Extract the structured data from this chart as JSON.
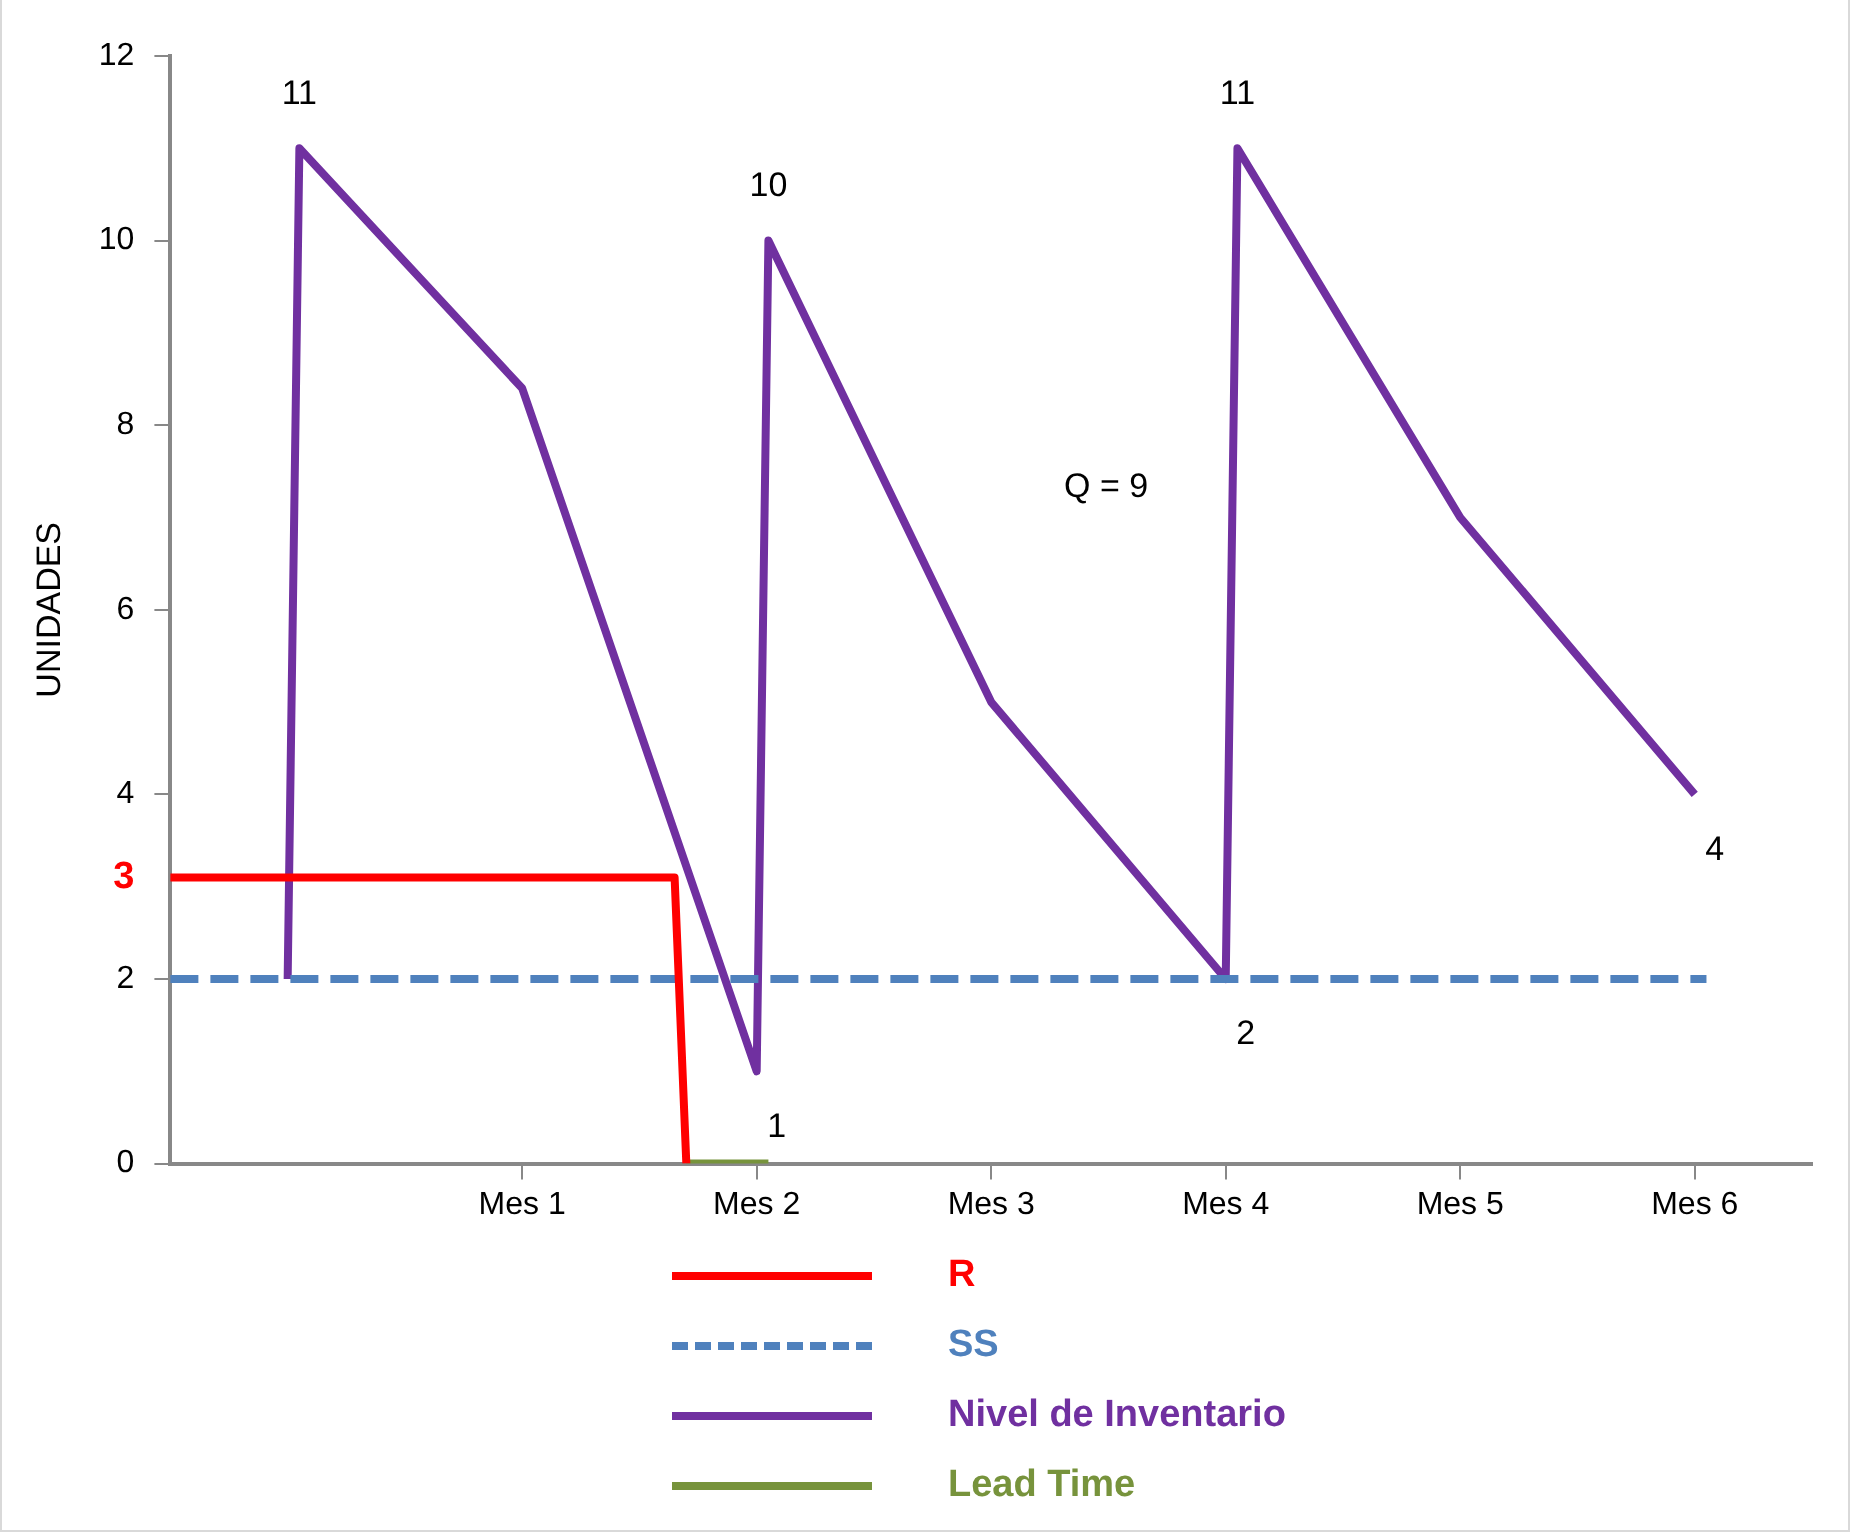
{
  "chart_data": {
    "type": "line",
    "ylabel": "UNIDADES",
    "ylim": [
      0,
      12
    ],
    "yticks": [
      0,
      2,
      4,
      6,
      8,
      10,
      12
    ],
    "categories": [
      null,
      null,
      null,
      null,
      null,
      null,
      null,
      null,
      null,
      null,
      null,
      null,
      null,
      null,
      null,
      null,
      null,
      null,
      null,
      null,
      null,
      null,
      null,
      null,
      null,
      null,
      null,
      null,
      null,
      null,
      "Mes 1",
      null,
      null,
      null,
      null,
      null,
      null,
      null,
      null,
      null,
      null,
      null,
      null,
      null,
      null,
      null,
      null,
      null,
      null,
      null,
      "Mes 2",
      null,
      null,
      null,
      null,
      null,
      null,
      null,
      null,
      null,
      null,
      null,
      null,
      null,
      null,
      null,
      null,
      null,
      null,
      null,
      "Mes 3",
      null,
      null,
      null,
      null,
      null,
      null,
      null,
      null,
      null,
      null,
      null,
      null,
      null,
      null,
      null,
      null,
      null,
      null,
      null,
      "Mes 4",
      null,
      null,
      null,
      null,
      null,
      null,
      null,
      null,
      null,
      null,
      null,
      null,
      null,
      null,
      null,
      null,
      null,
      null,
      null,
      "Mes 5",
      null,
      null,
      null,
      null,
      null,
      null,
      null,
      null,
      null,
      null,
      null,
      null,
      null,
      null,
      null,
      null,
      null,
      null,
      null,
      "Mes 6",
      null,
      null,
      null,
      null,
      null,
      null,
      null,
      null,
      null,
      null
    ],
    "grid": false,
    "legend": "bottom",
    "marker": "none",
    "series": [
      {
        "name": "R",
        "color": "#ff0000",
        "line_style": "solid",
        "values": [
          3.1,
          null,
          null,
          null,
          null,
          null,
          null,
          null,
          null,
          null,
          null,
          null,
          null,
          null,
          null,
          null,
          null,
          null,
          null,
          null,
          null,
          null,
          null,
          null,
          null,
          null,
          null,
          null,
          null,
          null,
          null,
          null,
          null,
          null,
          null,
          null,
          null,
          null,
          null,
          null,
          null,
          null,
          null,
          3.1,
          0,
          null,
          null,
          null,
          null,
          null,
          null,
          null,
          null,
          null,
          null,
          null,
          null,
          null,
          null,
          null,
          null,
          null,
          null,
          null,
          null,
          null,
          null,
          null,
          null,
          null,
          null,
          null,
          null,
          null,
          null,
          null,
          null,
          null,
          null,
          null,
          null,
          null,
          null,
          null,
          null,
          null,
          null,
          null,
          null,
          null,
          null,
          null,
          null,
          null,
          null,
          null,
          null,
          null,
          null,
          null,
          null,
          null,
          null,
          null,
          null,
          null,
          null,
          null,
          null,
          null,
          null,
          null,
          null,
          null,
          null,
          null,
          null,
          null,
          null,
          null,
          null,
          null,
          null,
          null,
          null,
          null,
          null,
          null,
          null,
          null,
          null,
          null,
          null,
          null,
          null,
          null,
          null,
          null,
          null,
          null,
          null
        ],
        "value_labels": [
          "3",
          null,
          null,
          null,
          null,
          null,
          null,
          null,
          null,
          null,
          null,
          null,
          null,
          null,
          null,
          null,
          null,
          null,
          null,
          null,
          null,
          null,
          null,
          null,
          null,
          null,
          null,
          null,
          null,
          null,
          null,
          null,
          null,
          null,
          null,
          null,
          null,
          null,
          null,
          null,
          null,
          null,
          null,
          null,
          null,
          null,
          null,
          null,
          null,
          null,
          null,
          null,
          null,
          null,
          null,
          null,
          null,
          null,
          null,
          null,
          null,
          null,
          null,
          null,
          null,
          null,
          null,
          null,
          null,
          null,
          null,
          null,
          null,
          null,
          null,
          null,
          null,
          null,
          null,
          null,
          null,
          null,
          null,
          null,
          null,
          null,
          null,
          null,
          null,
          null,
          null,
          null,
          null,
          null,
          null,
          null,
          null,
          null,
          null,
          null,
          null,
          null,
          null,
          null,
          null,
          null,
          null,
          null,
          null,
          null,
          null,
          null,
          null,
          null,
          null,
          null,
          null,
          null,
          null,
          null,
          null,
          null,
          null,
          null,
          null,
          null,
          null,
          null,
          null,
          null,
          null,
          null,
          null,
          null,
          null,
          null,
          null,
          null,
          null,
          null,
          null
        ]
      },
      {
        "name": "SS",
        "color": "#4f81bd",
        "line_style": "dashed",
        "values": [
          2,
          null,
          null,
          null,
          null,
          null,
          null,
          null,
          null,
          null,
          null,
          null,
          null,
          null,
          null,
          null,
          null,
          null,
          null,
          null,
          null,
          null,
          null,
          null,
          null,
          null,
          null,
          null,
          null,
          null,
          null,
          null,
          null,
          null,
          null,
          null,
          null,
          null,
          null,
          null,
          null,
          null,
          null,
          null,
          null,
          null,
          null,
          null,
          null,
          null,
          null,
          null,
          null,
          null,
          null,
          null,
          null,
          null,
          null,
          null,
          null,
          null,
          null,
          null,
          null,
          null,
          null,
          null,
          null,
          null,
          null,
          null,
          null,
          null,
          null,
          null,
          null,
          null,
          null,
          null,
          null,
          null,
          null,
          null,
          null,
          null,
          null,
          null,
          null,
          null,
          null,
          null,
          null,
          null,
          null,
          null,
          null,
          null,
          null,
          null,
          null,
          null,
          null,
          null,
          null,
          null,
          null,
          null,
          null,
          null,
          null,
          null,
          null,
          null,
          null,
          null,
          null,
          null,
          null,
          null,
          null,
          null,
          null,
          null,
          null,
          null,
          null,
          null,
          null,
          null,
          null,
          2,
          null,
          null,
          null,
          null,
          null,
          null,
          null,
          null,
          null
        ]
      },
      {
        "name": "Nivel de Inventario",
        "color": "#7030a0",
        "line_style": "solid",
        "values": [
          null,
          null,
          null,
          null,
          null,
          null,
          null,
          null,
          null,
          null,
          2,
          11,
          null,
          null,
          null,
          null,
          null,
          null,
          null,
          null,
          null,
          null,
          null,
          null,
          null,
          null,
          null,
          null,
          null,
          null,
          8.4,
          null,
          null,
          null,
          null,
          null,
          null,
          null,
          null,
          null,
          null,
          null,
          null,
          null,
          null,
          null,
          null,
          null,
          null,
          null,
          1,
          10,
          null,
          null,
          null,
          null,
          null,
          null,
          null,
          null,
          null,
          null,
          null,
          null,
          null,
          null,
          null,
          null,
          null,
          null,
          5,
          null,
          null,
          null,
          null,
          null,
          null,
          null,
          null,
          null,
          null,
          null,
          null,
          null,
          null,
          null,
          null,
          null,
          null,
          null,
          2,
          11,
          null,
          null,
          null,
          null,
          null,
          null,
          null,
          null,
          null,
          null,
          null,
          null,
          null,
          null,
          null,
          null,
          null,
          null,
          7,
          null,
          null,
          null,
          null,
          null,
          null,
          null,
          null,
          null,
          null,
          null,
          null,
          null,
          null,
          null,
          null,
          null,
          null,
          null,
          4,
          null,
          null,
          null,
          null,
          null,
          null,
          null,
          null,
          null,
          null
        ],
        "value_labels": [
          null,
          null,
          null,
          null,
          null,
          null,
          null,
          null,
          null,
          null,
          null,
          "11",
          null,
          null,
          null,
          null,
          null,
          null,
          null,
          null,
          null,
          null,
          null,
          null,
          null,
          null,
          null,
          null,
          null,
          null,
          null,
          null,
          null,
          null,
          null,
          null,
          null,
          null,
          null,
          null,
          null,
          null,
          null,
          null,
          null,
          null,
          null,
          null,
          null,
          null,
          "1",
          "10",
          null,
          null,
          null,
          null,
          null,
          null,
          null,
          null,
          null,
          null,
          null,
          null,
          null,
          null,
          null,
          null,
          null,
          null,
          null,
          null,
          null,
          null,
          null,
          null,
          null,
          null,
          null,
          null,
          null,
          null,
          null,
          null,
          null,
          null,
          null,
          null,
          null,
          null,
          "2",
          "11",
          null,
          null,
          null,
          null,
          null,
          null,
          null,
          null,
          null,
          null,
          null,
          null,
          null,
          null,
          null,
          null,
          null,
          null,
          null,
          null,
          null,
          null,
          null,
          null,
          null,
          null,
          null,
          null,
          null,
          null,
          null,
          null,
          null,
          null,
          null,
          null,
          null,
          null,
          "4",
          null,
          null,
          null,
          null,
          null,
          null,
          null,
          null,
          null,
          null
        ]
      },
      {
        "name": "Lead Time",
        "color": "#77933c",
        "line_style": "solid",
        "values": [
          null,
          null,
          null,
          null,
          null,
          null,
          null,
          null,
          null,
          null,
          null,
          null,
          null,
          null,
          null,
          null,
          null,
          null,
          null,
          null,
          null,
          null,
          null,
          null,
          null,
          null,
          null,
          null,
          null,
          null,
          null,
          null,
          null,
          null,
          null,
          null,
          null,
          null,
          null,
          null,
          null,
          null,
          null,
          null,
          0,
          null,
          null,
          null,
          null,
          null,
          null,
          0,
          null,
          null,
          null,
          null,
          null,
          null,
          null,
          null,
          null,
          null,
          null,
          null,
          null,
          null,
          null,
          null,
          null,
          null,
          null,
          null,
          null,
          null,
          null,
          null,
          null,
          null,
          null,
          null,
          null,
          null,
          null,
          null,
          null,
          null,
          null,
          null,
          null,
          null,
          null,
          null,
          null,
          null,
          null,
          null,
          null,
          null,
          null,
          null,
          null,
          null,
          null,
          null,
          null,
          null,
          null,
          null,
          null,
          null,
          null,
          null,
          null,
          null,
          null,
          null,
          null,
          null,
          null,
          null,
          null,
          null,
          null,
          null,
          null,
          null,
          null,
          null,
          null,
          null,
          null,
          null,
          null,
          null,
          null,
          null,
          null,
          null,
          null,
          null,
          null
        ]
      }
    ],
    "annotations": [
      "Q = 9"
    ]
  }
}
